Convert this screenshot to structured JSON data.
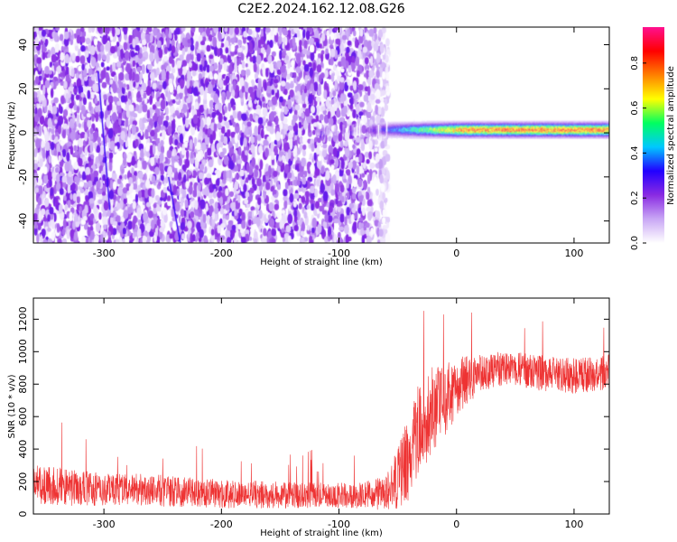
{
  "title": "C2E2.2024.162.12.08.G26",
  "chart_data": [
    {
      "type": "heatmap",
      "xlabel": "Height of straight line (km)",
      "ylabel": "Frequency (Hz)",
      "xlim": [
        -360,
        130
      ],
      "ylim": [
        -50,
        48
      ],
      "xticks": [
        -300,
        -200,
        -100,
        0,
        100
      ],
      "yticks": [
        -40,
        -20,
        0,
        20,
        40
      ],
      "grid": false,
      "colorbar": {
        "label": "Normalized spectral amplitude",
        "range": [
          0,
          0.96
        ],
        "ticks": [
          0.0,
          0.2,
          0.4,
          0.6,
          0.8
        ],
        "colormap": [
          "#ffffff",
          "#c9a7f5",
          "#8a2be2",
          "#2200ff",
          "#00c8ff",
          "#00ff60",
          "#ffff00",
          "#ff8000",
          "#ff0000",
          "#ff1090"
        ]
      },
      "features": [
        {
          "name": "noise",
          "x_range": [
            -360,
            -58
          ],
          "y_range": [
            -50,
            48
          ],
          "amplitude": 0.12
        },
        {
          "name": "signal",
          "x_range": [
            -120,
            130
          ],
          "center_hz": 1.5,
          "halfwidth_hz": 2.5,
          "amplitude": 0.85
        }
      ]
    },
    {
      "type": "line",
      "xlabel": "Height of straight line (km)",
      "ylabel": "SNR (10 * v/v)",
      "xlim": [
        -360,
        130
      ],
      "ylim": [
        0,
        1330
      ],
      "xticks": [
        -300,
        -200,
        -100,
        0,
        100
      ],
      "yticks": [
        0,
        200,
        400,
        600,
        800,
        1000,
        1200
      ],
      "grid": false,
      "series": [
        {
          "color": "#ee3333",
          "x": [
            -360,
            -340,
            -320,
            -300,
            -280,
            -260,
            -240,
            -220,
            -200,
            -180,
            -160,
            -140,
            -120,
            -100,
            -80,
            -60,
            -50,
            -40,
            -30,
            -20,
            -10,
            0,
            10,
            20,
            30,
            40,
            60,
            80,
            100,
            120,
            130
          ],
          "y": [
            180,
            170,
            160,
            150,
            150,
            145,
            140,
            130,
            125,
            120,
            120,
            115,
            115,
            115,
            115,
            130,
            200,
            350,
            550,
            650,
            700,
            780,
            830,
            870,
            880,
            900,
            880,
            860,
            850,
            860,
            880
          ],
          "spread": [
            120,
            120,
            110,
            100,
            100,
            100,
            95,
            90,
            90,
            85,
            85,
            80,
            80,
            80,
            80,
            110,
            200,
            280,
            300,
            260,
            220,
            180,
            150,
            120,
            110,
            110,
            110,
            110,
            110,
            110,
            110
          ]
        }
      ]
    }
  ]
}
